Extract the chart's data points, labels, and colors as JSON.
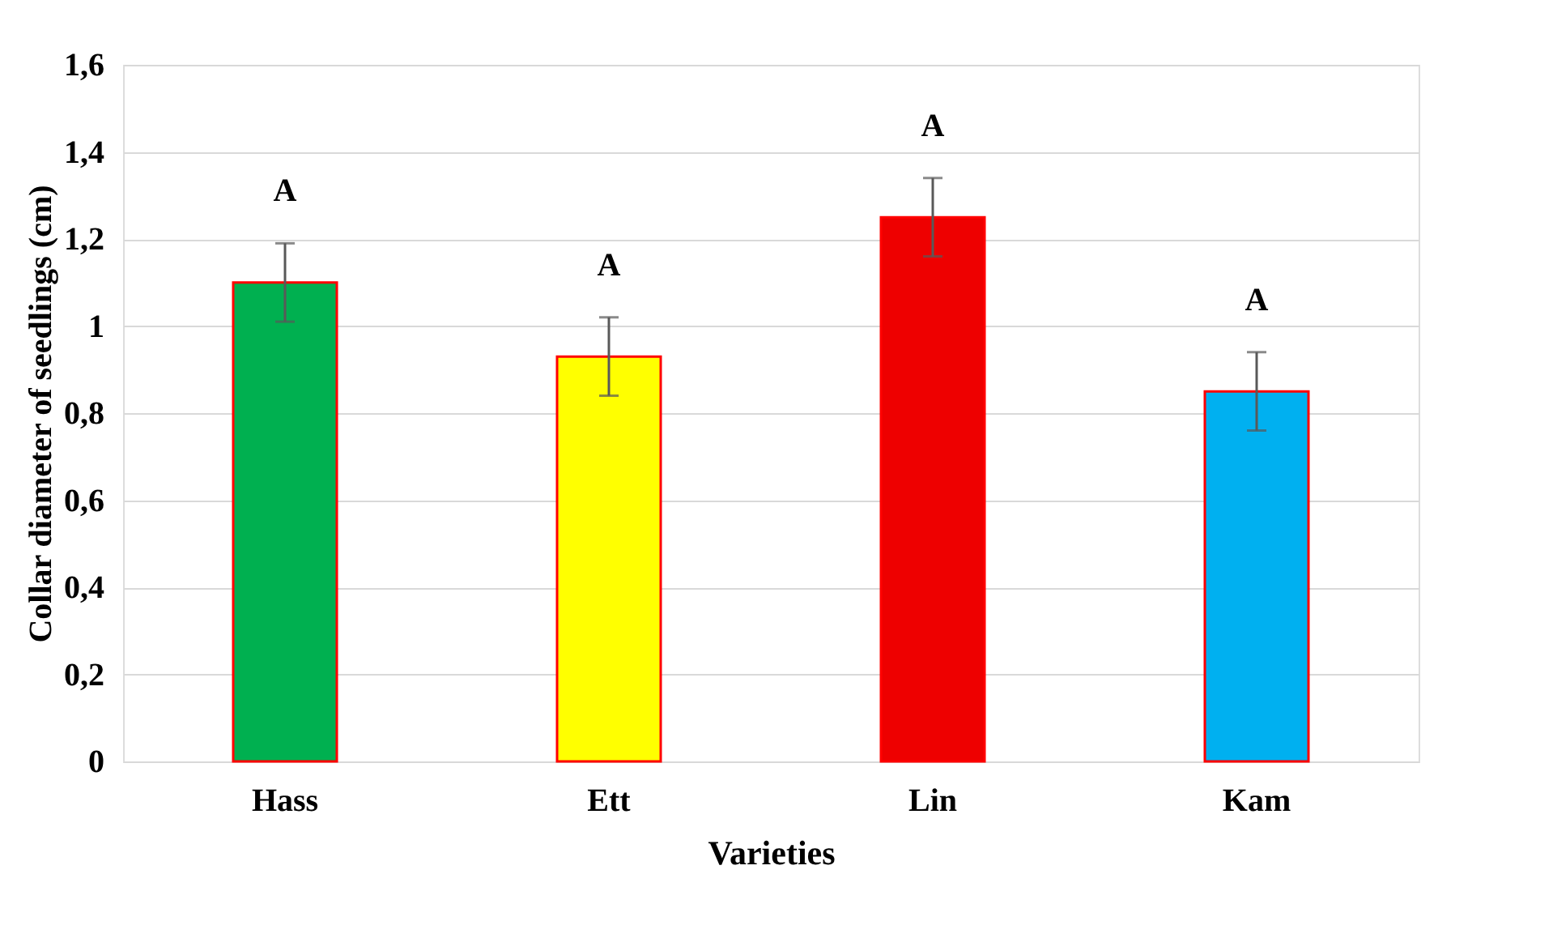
{
  "chart_data": {
    "type": "bar",
    "xlabel": "Varieties",
    "ylabel": "Collar diameter of seedlings (cm)",
    "categories": [
      "Hass",
      "Ett",
      "Lin",
      "Kam"
    ],
    "values": [
      1.1,
      0.93,
      1.25,
      0.85
    ],
    "colors": [
      "#00b050",
      "#ffff00",
      "#ee0000",
      "#00b0f0"
    ],
    "errors": [
      0.09,
      0.09,
      0.09,
      0.09
    ],
    "ylim": [
      0,
      1.6
    ],
    "yticks": [
      0,
      {
        "value": 0.2,
        "label": "0,2"
      },
      {
        "value": 0.4,
        "label": "0,4"
      },
      {
        "value": 0.6,
        "label": "0,6"
      },
      {
        "value": 0.8,
        "label": "0,8"
      },
      1,
      {
        "value": 1.2,
        "label": "1,2"
      },
      {
        "value": 1.4,
        "label": "1,4"
      },
      {
        "value": 1.6,
        "label": "1,6"
      }
    ],
    "grid": "y",
    "annotations": [
      "A",
      "A",
      "A",
      "A"
    ]
  }
}
